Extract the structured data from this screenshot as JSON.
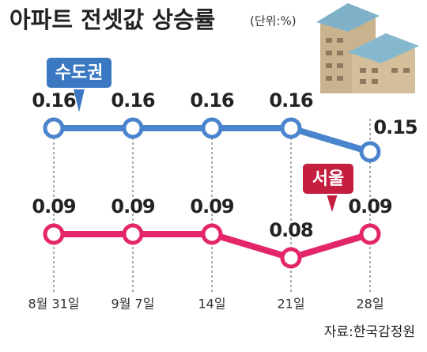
{
  "chart_data": {
    "type": "line",
    "title": "아파트 전셋값 상승률",
    "subtitle": "(단위:%)",
    "source": "자료:한국감정원",
    "categories": [
      "8월 31일",
      "9월 7일",
      "14일",
      "21일",
      "28일"
    ],
    "series": [
      {
        "name": "수도권",
        "color": "#4a84cc",
        "label_color": "#3b78c2",
        "values": [
          0.16,
          0.16,
          0.16,
          0.16,
          0.15
        ]
      },
      {
        "name": "서울",
        "color": "#e3266a",
        "label_color": "#c41f3f",
        "values": [
          0.09,
          0.09,
          0.09,
          0.08,
          0.09
        ]
      }
    ]
  }
}
